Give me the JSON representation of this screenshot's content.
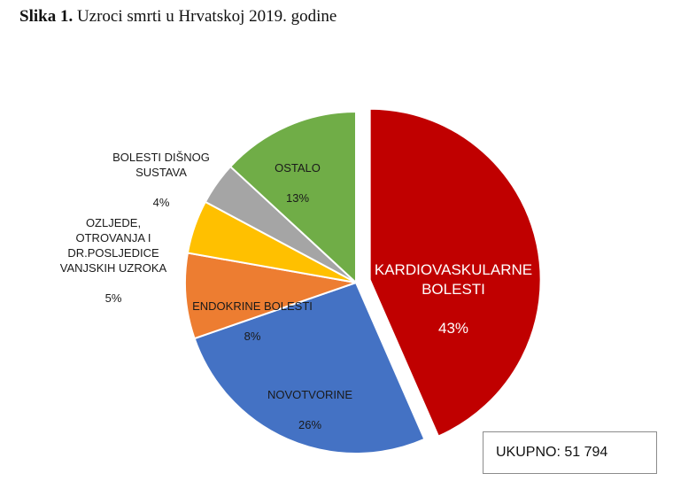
{
  "figure": {
    "caption_label": "Slika 1.",
    "caption_text": "Uzroci smrti u Hrvatskoj 2019. godine"
  },
  "chart_data": {
    "type": "pie",
    "start_angle_deg": 0,
    "direction": "clockwise",
    "slices": [
      {
        "label": "KARDIOVASKULARNE\nBOLESTI",
        "percent_label": "43%",
        "value": 43,
        "color": "#C00000",
        "exploded": true
      },
      {
        "label": "NOVOTVORINE",
        "percent_label": "26%",
        "value": 26,
        "color": "#4472C4",
        "exploded": false
      },
      {
        "label": "ENDOKRINE BOLESTI",
        "percent_label": "8%",
        "value": 8,
        "color": "#ED7D31",
        "exploded": false
      },
      {
        "label": "OZLJEDE,\nOTROVANJA I\nDR.POSLJEDICE\nVANJSKIH UZROKA",
        "percent_label": "5%",
        "value": 5,
        "color": "#FFC000",
        "exploded": false
      },
      {
        "label": "BOLESTI DIŠNOG\nSUSTAVA",
        "percent_label": "4%",
        "value": 4,
        "color": "#A5A5A5",
        "exploded": false
      },
      {
        "label": "OSTALO",
        "percent_label": "13%",
        "value": 13,
        "color": "#70AD47",
        "exploded": false
      }
    ]
  },
  "total_box": {
    "text": "UKUPNO: 51 794"
  }
}
